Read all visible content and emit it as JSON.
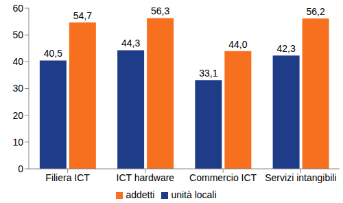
{
  "chart_data": {
    "type": "bar",
    "categories": [
      "Filiera ICT",
      "ICT hardware",
      "Commercio ICT",
      "Servizi intangibili"
    ],
    "series": [
      {
        "name": "unità locali",
        "color": "#1f3c88",
        "values": [
          40.5,
          44.3,
          33.1,
          42.3
        ],
        "value_labels": [
          "40,5",
          "44,3",
          "33,1",
          "42,3"
        ]
      },
      {
        "name": "addetti",
        "color": "#f7701f",
        "values": [
          54.7,
          56.3,
          44.0,
          56.2
        ],
        "value_labels": [
          "54,7",
          "56,3",
          "44,0",
          "56,2"
        ]
      }
    ],
    "ylim": [
      0,
      60
    ],
    "yticks": [
      0,
      10,
      20,
      30,
      40,
      50,
      60
    ],
    "grid": false,
    "legend": "bottom",
    "data_labels": true
  }
}
